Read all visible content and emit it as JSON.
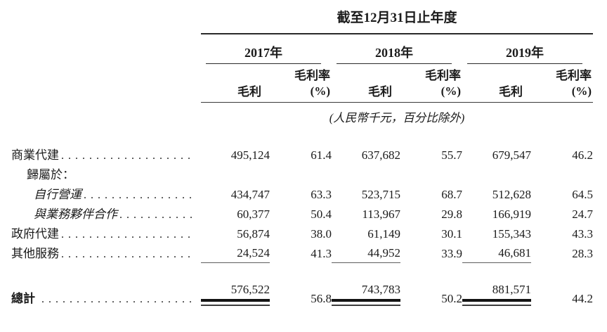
{
  "leader_dots": "............................................",
  "table": {
    "period_header": "截至12月31日止年度",
    "unit_note": "(人民幣千元，百分比除外)",
    "year_groups": [
      {
        "year": "2017年"
      },
      {
        "year": "2018年"
      },
      {
        "year": "2019年"
      }
    ],
    "subheaders": {
      "gross_profit": "毛利",
      "margin_top": "毛利率",
      "margin_bottom": "(%)"
    },
    "rows": [
      {
        "label": "商業代建",
        "values": [
          "495,124",
          "61.4",
          "637,682",
          "55.7",
          "679,547",
          "46.2"
        ]
      },
      {
        "label": "歸屬於：",
        "values": []
      },
      {
        "label": "自行營運",
        "values": [
          "434,747",
          "63.3",
          "523,715",
          "68.7",
          "512,628",
          "64.5"
        ]
      },
      {
        "label": "與業務夥伴合作",
        "values": [
          "60,377",
          "50.4",
          "113,967",
          "29.8",
          "166,919",
          "24.7"
        ]
      },
      {
        "label": "政府代建",
        "values": [
          "56,874",
          "38.0",
          "61,149",
          "30.1",
          "155,343",
          "43.3"
        ]
      },
      {
        "label": "其他服務",
        "values": [
          "24,524",
          "41.3",
          "44,952",
          "33.9",
          "46,681",
          "28.3"
        ]
      }
    ],
    "total_row": {
      "label": "總計",
      "values": [
        "576,522",
        "56.8",
        "743,783",
        "50.2",
        "881,571",
        "44.2"
      ]
    }
  }
}
